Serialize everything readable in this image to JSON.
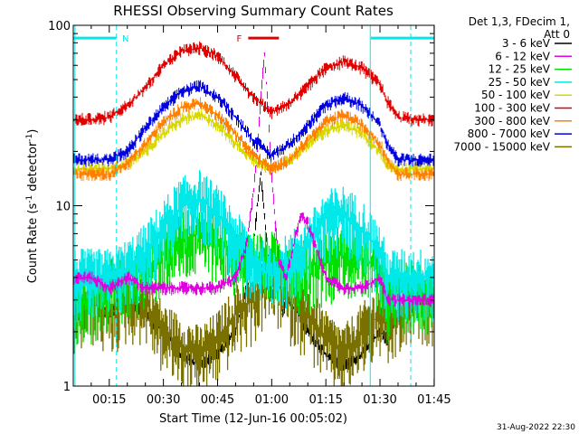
{
  "chart_data": {
    "type": "line",
    "title": "RHESSI Observing Summary Count Rates",
    "xlabel": "Start Time (12-Jun-16 00:05:02)",
    "ylabel": "Count Rate (s",
    "ylabel_sup": "-1",
    "ylabel_tail": " detector",
    "ylabel_sup2": "-1",
    "ylabel_end": ")",
    "x_unit": "minutes after 00:00 UT",
    "xlim": [
      5.03,
      105.03
    ],
    "ylim": [
      1,
      100
    ],
    "yscale": "log",
    "grid": false,
    "legend_position": "right",
    "x_ticks": [
      {
        "value": 15,
        "label": "00:15"
      },
      {
        "value": 30,
        "label": "00:30"
      },
      {
        "value": 45,
        "label": "00:45"
      },
      {
        "value": 60,
        "label": "01:00"
      },
      {
        "value": 75,
        "label": "01:15"
      },
      {
        "value": 90,
        "label": "01:30"
      },
      {
        "value": 105,
        "label": "01:45"
      }
    ],
    "y_ticks": [
      {
        "value": 1,
        "label": "1"
      },
      {
        "value": 10,
        "label": "10"
      },
      {
        "value": 100,
        "label": "100"
      }
    ],
    "legend_header": [
      "Det 1,3, FDecim 1,",
      "Att 0"
    ],
    "series": [
      {
        "name": "3 - 6 keV",
        "color": "#000000",
        "x": [
          5,
          10,
          15,
          20,
          25,
          30,
          35,
          40,
          45,
          50,
          52,
          54,
          55,
          56,
          57,
          58,
          59,
          60,
          61,
          62,
          63,
          64,
          65,
          70,
          75,
          80,
          85,
          90,
          92,
          95,
          100
        ],
        "y": [
          3,
          3,
          2.5,
          3,
          2.5,
          2,
          1.5,
          1.3,
          1.5,
          2,
          3,
          4,
          6,
          10,
          15,
          9,
          5,
          3,
          4,
          5,
          2.5,
          3,
          3,
          2,
          1.5,
          1.3,
          1.5,
          2,
          1.8,
          2.5,
          3
        ]
      },
      {
        "name": "6 - 12 keV",
        "color": "#e000e0",
        "x": [
          5,
          10,
          15,
          20,
          25,
          30,
          35,
          40,
          45,
          50,
          53,
          55,
          56,
          57,
          58,
          59,
          60,
          61,
          62,
          64,
          66,
          68,
          70,
          75,
          80,
          85,
          90,
          92,
          95,
          100
        ],
        "y": [
          4,
          4,
          3.5,
          4,
          3.5,
          3.5,
          3.5,
          3.5,
          3.5,
          4,
          6,
          12,
          20,
          40,
          70,
          35,
          15,
          8,
          5,
          4,
          6,
          9,
          8,
          4,
          3.5,
          3.5,
          4,
          3,
          3,
          3
        ]
      },
      {
        "name": "12 - 25 keV",
        "color": "#00e000",
        "x": [
          5,
          10,
          15,
          20,
          25,
          30,
          35,
          40,
          45,
          50,
          55,
          60,
          65,
          70,
          75,
          80,
          85,
          90,
          92,
          95,
          100
        ],
        "y": [
          3,
          3,
          3.5,
          4,
          4.5,
          5.5,
          6.5,
          7,
          6.5,
          5.5,
          5,
          5,
          4.5,
          4.5,
          5,
          5.5,
          5,
          4.5,
          3,
          3.5,
          3.5
        ]
      },
      {
        "name": "25 - 50 keV",
        "color": "#00e8e8",
        "x": [
          5,
          10,
          15,
          20,
          25,
          30,
          35,
          40,
          45,
          50,
          55,
          60,
          65,
          70,
          75,
          80,
          85,
          90,
          92,
          95,
          100
        ],
        "y": [
          4,
          4,
          4,
          4.5,
          5.5,
          7.5,
          10,
          11,
          9,
          6.5,
          5,
          4,
          5,
          6,
          8.5,
          9,
          7.5,
          5.5,
          4,
          4,
          4
        ]
      },
      {
        "name": "50 - 100 keV",
        "color": "#d8d800",
        "x": [
          5,
          10,
          15,
          20,
          25,
          30,
          35,
          40,
          45,
          50,
          55,
          60,
          65,
          70,
          75,
          80,
          85,
          90,
          92,
          95,
          100
        ],
        "y": [
          16,
          16,
          16,
          17,
          20,
          25,
          30,
          32,
          28,
          22,
          18,
          16,
          18,
          22,
          26,
          28,
          25,
          20,
          17,
          16,
          16
        ]
      },
      {
        "name": "100 - 300 keV",
        "color": "#e00000",
        "x": [
          5,
          10,
          15,
          20,
          25,
          30,
          35,
          40,
          45,
          50,
          55,
          60,
          65,
          70,
          75,
          80,
          85,
          90,
          92,
          95,
          100
        ],
        "y": [
          30,
          30,
          31,
          36,
          45,
          60,
          72,
          75,
          68,
          52,
          40,
          33,
          37,
          46,
          58,
          63,
          58,
          47,
          38,
          31,
          30
        ]
      },
      {
        "name": "300 - 800 keV",
        "color": "#ff8000",
        "x": [
          5,
          10,
          15,
          20,
          25,
          30,
          35,
          40,
          45,
          50,
          55,
          60,
          65,
          70,
          75,
          80,
          85,
          90,
          92,
          95,
          100
        ],
        "y": [
          15,
          15,
          15,
          17,
          22,
          29,
          35,
          37,
          32,
          25,
          19,
          16,
          18,
          23,
          29,
          32,
          28,
          22,
          18,
          15,
          15
        ]
      },
      {
        "name": "800 - 7000 keV",
        "color": "#0000e0",
        "x": [
          5,
          10,
          15,
          20,
          25,
          30,
          35,
          40,
          45,
          50,
          55,
          60,
          65,
          70,
          75,
          80,
          85,
          90,
          92,
          95,
          100
        ],
        "y": [
          18,
          18,
          18,
          20,
          27,
          35,
          43,
          46,
          40,
          31,
          23,
          19,
          22,
          28,
          36,
          40,
          36,
          28,
          22,
          18,
          18
        ]
      },
      {
        "name": "7000 - 15000 keV",
        "color": "#7a7000",
        "x": [
          5,
          10,
          15,
          20,
          25,
          30,
          35,
          40,
          45,
          50,
          55,
          60,
          65,
          70,
          75,
          80,
          85,
          90,
          92,
          95,
          100
        ],
        "y": [
          2.5,
          3,
          2.5,
          3,
          3,
          2,
          1.7,
          1.5,
          1.8,
          2.5,
          3,
          4,
          3,
          2.5,
          1.8,
          1.5,
          2,
          2.5,
          2,
          2.5,
          3
        ]
      }
    ],
    "annotations": [
      {
        "label": "N",
        "color": "#00e8e8",
        "type": "night",
        "intervals": [
          [
            5.03,
            17.0
          ],
          [
            87.5,
            105.03
          ]
        ],
        "marker_ratio": 85
      },
      {
        "label": "F",
        "color": "#e00000",
        "type": "flare",
        "intervals": [
          [
            53.5,
            62.0
          ]
        ],
        "marker_ratio": 85
      }
    ],
    "vertical_lines": [
      {
        "x": 5.5,
        "color": "#00e8e8",
        "style": "solid"
      },
      {
        "x": 17.0,
        "color": "#00e8e8",
        "style": "dashed"
      },
      {
        "x": 87.3,
        "color": "#00e8e8",
        "style": "solid"
      },
      {
        "x": 98.5,
        "color": "#00e8e8",
        "style": "dashed"
      }
    ]
  },
  "footer_timestamp": "31-Aug-2022 22:30"
}
